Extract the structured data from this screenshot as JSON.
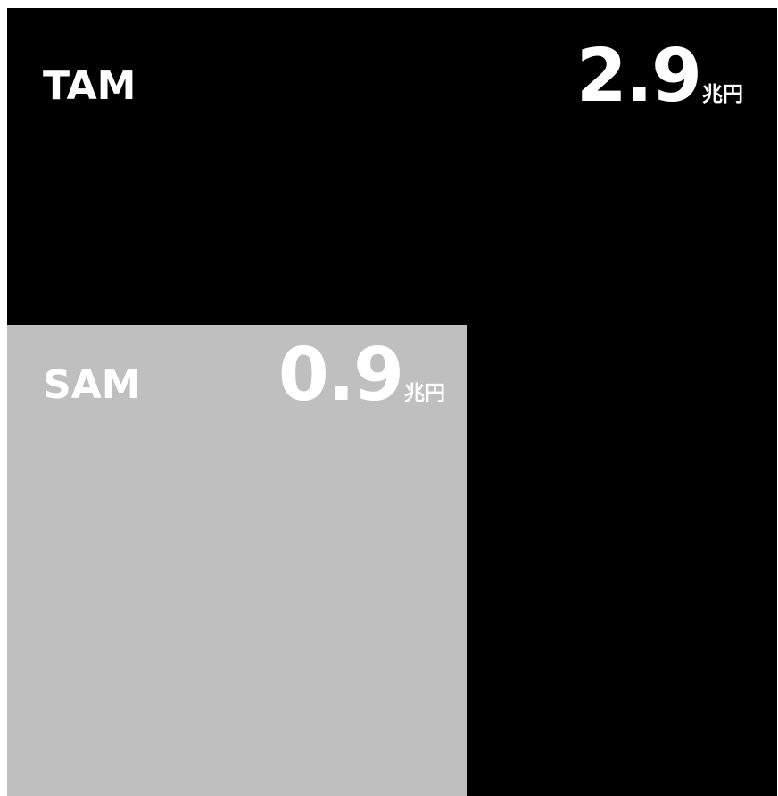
{
  "boxes": [
    {
      "label": "TAM",
      "value": 2.9,
      "unit": "兆円"
    },
    {
      "label": "SAM",
      "value": 0.9,
      "unit": "兆円"
    }
  ]
}
